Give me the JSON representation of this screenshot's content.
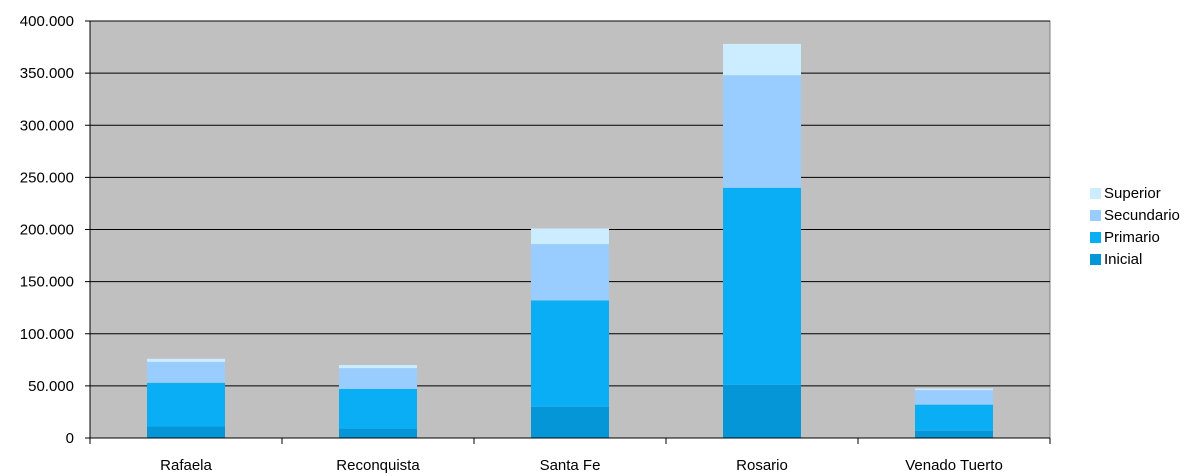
{
  "chart_data": {
    "type": "bar",
    "stacked": true,
    "categories": [
      "Rafaela",
      "Reconquista",
      "Santa Fe",
      "Rosario",
      "Venado Tuerto"
    ],
    "series": [
      {
        "name": "Inicial",
        "color": "#0596d8",
        "values": [
          11000,
          9000,
          30000,
          51000,
          7000
        ]
      },
      {
        "name": "Primario",
        "color": "#0aaef5",
        "values": [
          42000,
          38000,
          102000,
          189000,
          25000
        ]
      },
      {
        "name": "Secundario",
        "color": "#99ccff",
        "values": [
          20000,
          20000,
          54000,
          108000,
          14000
        ]
      },
      {
        "name": "Superior",
        "color": "#ccecff",
        "values": [
          3000,
          3000,
          15000,
          30000,
          1500
        ]
      }
    ],
    "y_ticks": [
      "0",
      "50.000",
      "100.000",
      "150.000",
      "200.000",
      "250.000",
      "300.000",
      "350.000",
      "400.000"
    ],
    "ylim": [
      0,
      400000
    ],
    "grid": true,
    "plot_background": "#c0c0c0",
    "legend_position": "right",
    "title": "",
    "xlabel": "",
    "ylabel": ""
  }
}
